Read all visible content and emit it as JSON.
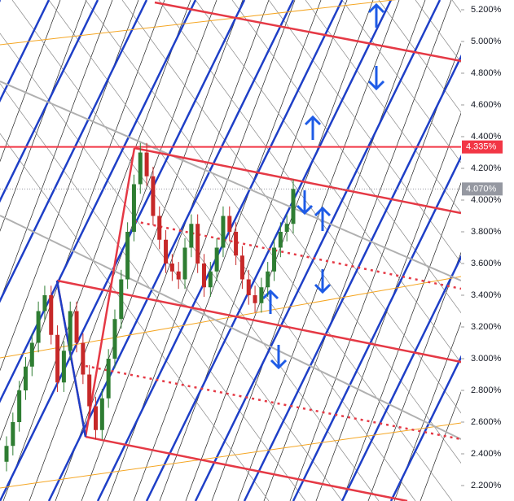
{
  "chart_data": {
    "type": "candlestick",
    "open": [
      2.35,
      2.45,
      2.6,
      2.8,
      2.95,
      3.1,
      3.3,
      3.4,
      3.15,
      2.85,
      3.05,
      3.3,
      3.1,
      2.9,
      2.7,
      2.55,
      2.75,
      3.0,
      3.25,
      3.5,
      3.8,
      4.1,
      4.3,
      4.15,
      3.9,
      3.75,
      3.6,
      3.55,
      3.5,
      3.7,
      3.85,
      3.6,
      3.45,
      3.55,
      3.7,
      3.9,
      3.8,
      3.65,
      3.5,
      3.4,
      3.35,
      3.45,
      3.55,
      3.7,
      3.8,
      3.85
    ],
    "high": [
      2.51,
      2.66,
      2.86,
      3.01,
      3.16,
      3.36,
      3.46,
      3.46,
      3.21,
      3.11,
      3.36,
      3.36,
      3.16,
      2.96,
      2.76,
      2.81,
      3.06,
      3.31,
      3.56,
      3.86,
      4.16,
      4.36,
      4.36,
      4.21,
      3.96,
      3.81,
      3.66,
      3.61,
      3.76,
      3.91,
      3.91,
      3.66,
      3.61,
      3.76,
      3.96,
      3.96,
      3.86,
      3.71,
      3.56,
      3.46,
      3.51,
      3.61,
      3.76,
      3.86,
      3.91,
      4.13
    ],
    "low": [
      2.29,
      2.39,
      2.54,
      2.74,
      2.89,
      3.04,
      3.24,
      3.09,
      2.79,
      2.79,
      2.99,
      3.04,
      2.84,
      2.64,
      2.49,
      2.49,
      2.69,
      2.94,
      3.19,
      3.44,
      3.74,
      4.04,
      4.09,
      3.84,
      3.69,
      3.54,
      3.49,
      3.44,
      3.44,
      3.64,
      3.54,
      3.39,
      3.39,
      3.49,
      3.64,
      3.74,
      3.59,
      3.44,
      3.34,
      3.29,
      3.29,
      3.39,
      3.49,
      3.64,
      3.74,
      3.79
    ],
    "close": [
      2.45,
      2.6,
      2.8,
      2.95,
      3.1,
      3.3,
      3.4,
      3.15,
      2.85,
      3.05,
      3.3,
      3.1,
      2.9,
      2.7,
      2.55,
      2.75,
      3.0,
      3.25,
      3.5,
      3.8,
      4.1,
      4.3,
      4.15,
      3.9,
      3.75,
      3.6,
      3.55,
      3.5,
      3.7,
      3.85,
      3.6,
      3.45,
      3.55,
      3.7,
      3.9,
      3.8,
      3.65,
      3.5,
      3.4,
      3.35,
      3.45,
      3.55,
      3.7,
      3.8,
      3.85,
      4.07
    ],
    "up_color": "#2e7d32",
    "down_color": "#c62828",
    "ylim": [
      2.1026,
      5.2615
    ],
    "yticks": [
      {
        "value": 5.2,
        "label": "5.200%"
      },
      {
        "value": 5.0,
        "label": "5.000%"
      },
      {
        "value": 4.8,
        "label": "4.800%"
      },
      {
        "value": 4.6,
        "label": "4.600%"
      },
      {
        "value": 4.4,
        "label": "4.400%"
      },
      {
        "value": 4.2,
        "label": "4.200%"
      },
      {
        "value": 4.0,
        "label": "4.000%"
      },
      {
        "value": 3.8,
        "label": "3.800%"
      },
      {
        "value": 3.6,
        "label": "3.600%"
      },
      {
        "value": 3.4,
        "label": "3.400%"
      },
      {
        "value": 3.2,
        "label": "3.200%"
      },
      {
        "value": 3.0,
        "label": "3.000%"
      },
      {
        "value": 2.8,
        "label": "2.800%"
      },
      {
        "value": 2.6,
        "label": "2.600%"
      },
      {
        "value": 2.4,
        "label": "2.400%"
      },
      {
        "value": 2.2,
        "label": "2.200%"
      }
    ],
    "price_labels": [
      {
        "value": 4.335,
        "label": "4.335%",
        "color": "#f23645"
      },
      {
        "value": 4.07,
        "label": "4.070%",
        "color": "#9598a1"
      }
    ]
  }
}
